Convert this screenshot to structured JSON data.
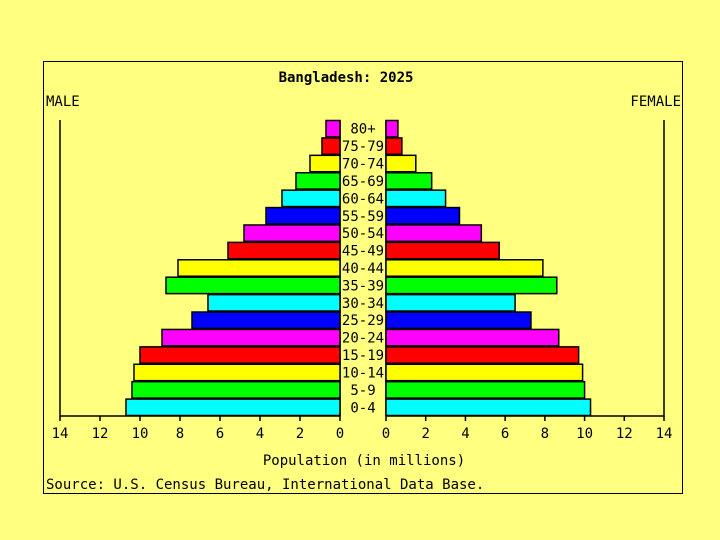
{
  "chart_data": {
    "type": "bar",
    "title": "Bangladesh: 2025",
    "left_label": "MALE",
    "right_label": "FEMALE",
    "categories": [
      "80+",
      "75-79",
      "70-74",
      "65-69",
      "60-64",
      "55-59",
      "50-54",
      "45-49",
      "40-44",
      "35-39",
      "30-34",
      "25-29",
      "20-24",
      "15-19",
      "10-14",
      "5-9",
      "0-4"
    ],
    "series": [
      {
        "name": "MALE",
        "color": "#000000",
        "values": [
          0.7,
          0.9,
          1.5,
          2.2,
          2.9,
          3.7,
          4.8,
          5.6,
          8.1,
          8.7,
          6.6,
          7.4,
          8.9,
          10.0,
          10.3,
          10.4,
          10.7
        ]
      },
      {
        "name": "FEMALE",
        "color": "#000000",
        "values": [
          0.6,
          0.8,
          1.5,
          2.3,
          3.0,
          3.7,
          4.8,
          5.7,
          7.9,
          8.6,
          6.5,
          7.3,
          8.7,
          9.7,
          9.9,
          10.0,
          10.3
        ]
      }
    ],
    "bar_colors": [
      "#ff00ff",
      "#ff0000",
      "#ffff00",
      "#00ff00",
      "#00ffff",
      "#0000ff",
      "#ff00ff",
      "#ff0000",
      "#ffff00",
      "#00ff00",
      "#00ffff",
      "#0000ff",
      "#ff00ff",
      "#ff0000",
      "#ffff00",
      "#00ff00",
      "#00ffff"
    ],
    "male_ticks": [
      "14",
      "12",
      "10",
      "8",
      "6",
      "4",
      "2",
      "0"
    ],
    "female_ticks": [
      "0",
      "2",
      "4",
      "6",
      "8",
      "10",
      "12",
      "14"
    ],
    "xlim": [
      0,
      14
    ],
    "xlabel": "Population (in millions)",
    "source": "Source: U.S. Census Bureau, International Data Base."
  }
}
